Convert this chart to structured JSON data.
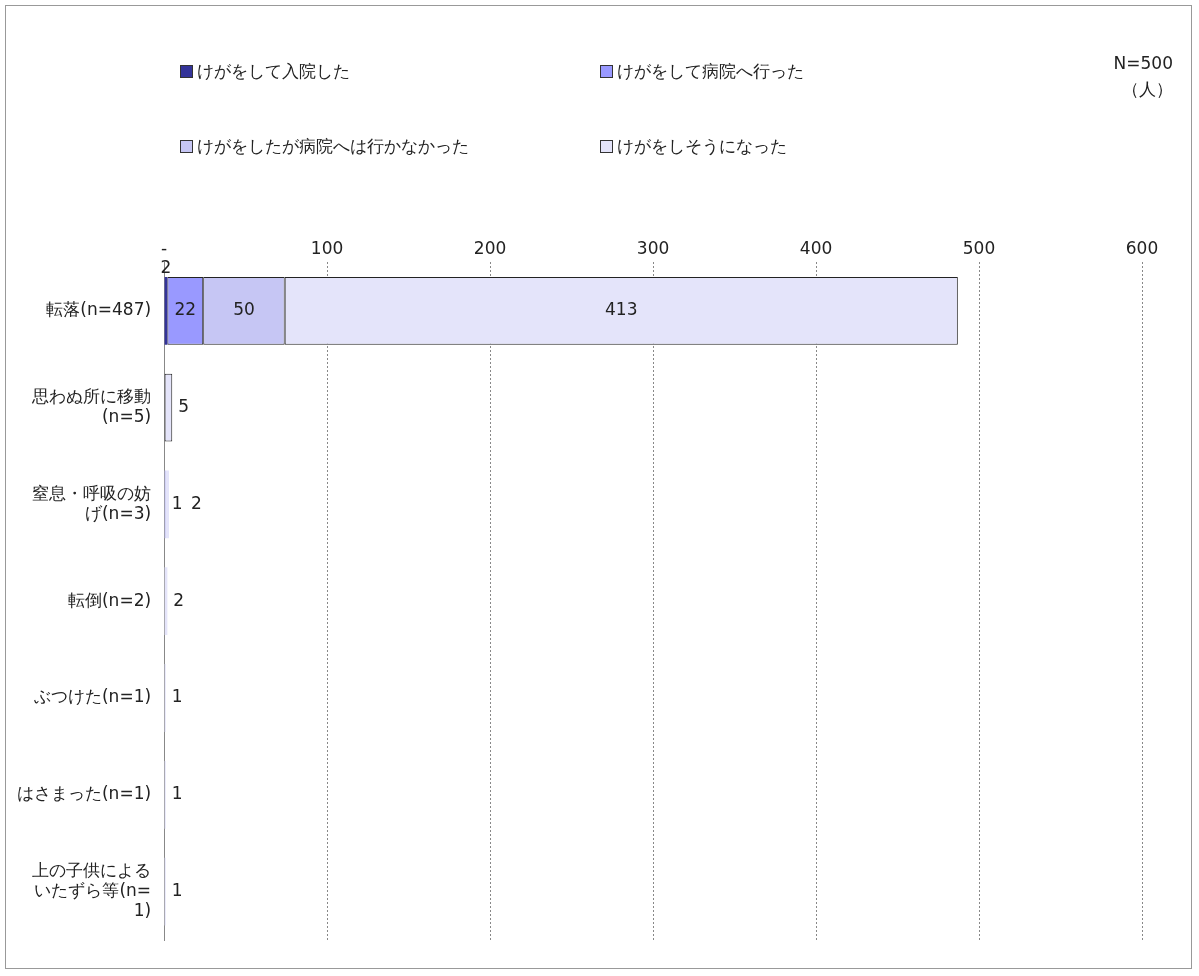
{
  "chart_data": {
    "type": "bar",
    "orientation": "horizontal",
    "stacked": true,
    "categories": [
      "転落(n=487)",
      "思わぬ所に移動(n=5)",
      "窒息・呼吸の妨げ(n=3)",
      "転倒(n=2)",
      "ぶつけた(n=1)",
      "はさまった(n=1)",
      "上の子供によるいたずら等(n=1)"
    ],
    "series": [
      {
        "name": "けがをして入院した",
        "color": "#333399",
        "values": [
          2,
          null,
          null,
          null,
          null,
          null,
          null
        ]
      },
      {
        "name": "けがをして病院へ行った",
        "color": "#9999ff",
        "values": [
          22,
          null,
          null,
          null,
          null,
          null,
          null
        ]
      },
      {
        "name": "けがをしたが病院へは行かなかった",
        "color": "#c6c6f4",
        "values": [
          50,
          null,
          1,
          null,
          null,
          null,
          null
        ]
      },
      {
        "name": "けがをしそうになった",
        "color": "#e4e4fa",
        "values": [
          413,
          5,
          2,
          2,
          1,
          1,
          1
        ]
      }
    ],
    "xlim": [
      0,
      600
    ],
    "xticks": [
      {
        "value": 0,
        "label": "-"
      },
      100,
      200,
      300,
      400,
      500,
      600
    ],
    "grid": "x",
    "legend": "top",
    "data_labels": true,
    "annotations": [
      "N=500",
      "（人）"
    ]
  }
}
